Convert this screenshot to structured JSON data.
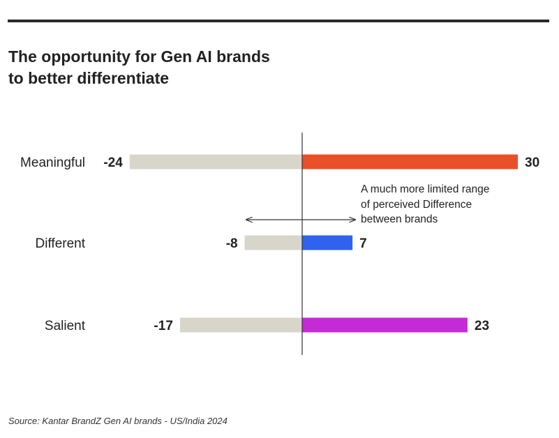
{
  "header": {
    "title_line1": "The opportunity for Gen AI brands",
    "title_line2": "to better differentiate"
  },
  "annotation": {
    "lines": [
      "A much more limited range",
      "of perceived Difference",
      "between brands"
    ]
  },
  "footer": {
    "source": "Source: Kantar BrandZ Gen AI brands - US/India 2024"
  },
  "colors": {
    "negative_bar": "#d8d6cb",
    "meaningful": "#e8502a",
    "different": "#2f63ef",
    "salient": "#c42bd6",
    "axis": "#333333",
    "text": "#222222"
  },
  "chart_data": {
    "type": "bar",
    "orientation": "horizontal-diverging",
    "categories": [
      "Meaningful",
      "Different",
      "Salient"
    ],
    "series": [
      {
        "values": [
          -24,
          -8,
          -17
        ],
        "color": "#d8d6cb"
      },
      {
        "values": [
          30,
          7,
          23
        ],
        "colors": [
          "#e8502a",
          "#2f63ef",
          "#c42bd6"
        ]
      }
    ],
    "negative_labels": [
      "-24",
      "-8",
      "-17"
    ],
    "positive_labels": [
      "30",
      "7",
      "23"
    ],
    "xlim": [
      -24,
      30
    ]
  }
}
